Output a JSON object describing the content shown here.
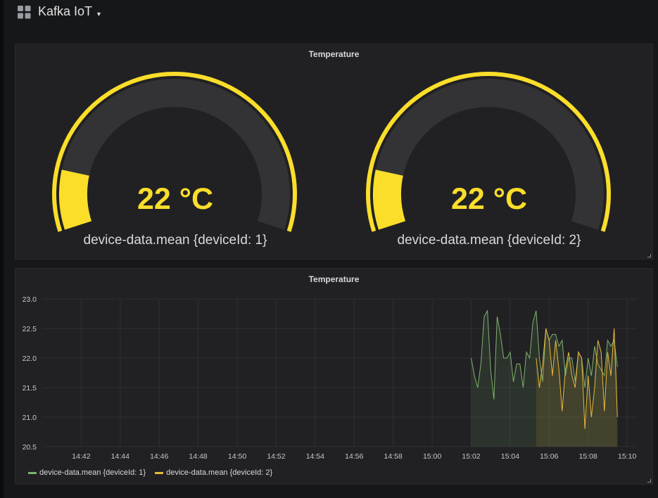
{
  "header": {
    "dashboard_title": "Kafka IoT",
    "dashboard_icon": "grid-icon",
    "caret_icon": "caret-down-icon"
  },
  "gauge_panel": {
    "title": "Temperature",
    "gauges": [
      {
        "value_text": "22 °C",
        "label": "device-data.mean {deviceId: 1}",
        "value": 22,
        "threshold_fraction": 0.14
      },
      {
        "value_text": "22 °C",
        "label": "device-data.mean {deviceId: 2}",
        "value": 22,
        "threshold_fraction": 0.14
      }
    ],
    "colors": {
      "accent": "#fade2a",
      "track": "#333335",
      "value": "#fade2a"
    }
  },
  "graph_panel": {
    "title": "Temperature",
    "legend": [
      {
        "label": "device-data.mean {deviceId: 1}",
        "color": "#7eb26d"
      },
      {
        "label": "device-data.mean {deviceId: 2}",
        "color": "#eab839"
      }
    ]
  },
  "chart_data": {
    "type": "line",
    "title": "Temperature",
    "xlabel": "",
    "ylabel": "",
    "x_ticks": [
      "14:42",
      "14:44",
      "14:46",
      "14:48",
      "14:50",
      "14:52",
      "14:54",
      "14:56",
      "14:58",
      "15:00",
      "15:02",
      "15:04",
      "15:06",
      "15:08",
      "15:10"
    ],
    "y_ticks": [
      "20.5",
      "21.0",
      "21.5",
      "22.0",
      "22.5",
      "23.0"
    ],
    "ylim": [
      20.5,
      23.0
    ],
    "xlim": [
      "14:40",
      "15:10"
    ],
    "grid": true,
    "legend_position": "bottom-left",
    "fill": true,
    "series": [
      {
        "name": "device-data.mean {deviceId: 1}",
        "color": "#7eb26d",
        "x": [
          "15:02:00",
          "15:02:10",
          "15:02:20",
          "15:02:30",
          "15:02:40",
          "15:02:50",
          "15:03:00",
          "15:03:10",
          "15:03:20",
          "15:03:30",
          "15:03:40",
          "15:03:50",
          "15:04:00",
          "15:04:10",
          "15:04:20",
          "15:04:30",
          "15:04:40",
          "15:04:50",
          "15:05:00",
          "15:05:10",
          "15:05:20",
          "15:05:30",
          "15:05:40",
          "15:05:50",
          "15:06:00",
          "15:06:10",
          "15:06:20",
          "15:06:30",
          "15:06:40",
          "15:06:50",
          "15:07:00",
          "15:07:10",
          "15:07:20",
          "15:07:30",
          "15:07:40",
          "15:07:50",
          "15:08:00",
          "15:08:10",
          "15:08:20",
          "15:08:30",
          "15:08:40",
          "15:08:50",
          "15:09:00",
          "15:09:10",
          "15:09:20",
          "15:09:30"
        ],
        "values": [
          22.0,
          21.7,
          21.5,
          21.9,
          22.7,
          22.8,
          21.8,
          21.3,
          22.7,
          22.4,
          22.0,
          22.0,
          22.1,
          21.6,
          21.9,
          21.9,
          21.5,
          22.1,
          22.0,
          22.6,
          22.8,
          22.0,
          21.6,
          22.5,
          22.3,
          22.4,
          22.4,
          22.2,
          22.3,
          21.7,
          22.0,
          22.0,
          21.6,
          22.1,
          22.0,
          21.5,
          22.0,
          21.7,
          22.2,
          21.9,
          21.8,
          21.7,
          22.3,
          22.2,
          22.3,
          21.85
        ]
      },
      {
        "name": "device-data.mean {deviceId: 2}",
        "color": "#eab839",
        "x": [
          "15:05:20",
          "15:05:30",
          "15:05:40",
          "15:05:50",
          "15:06:00",
          "15:06:10",
          "15:06:20",
          "15:06:30",
          "15:06:40",
          "15:06:50",
          "15:07:00",
          "15:07:10",
          "15:07:20",
          "15:07:30",
          "15:07:40",
          "15:07:50",
          "15:08:00",
          "15:08:10",
          "15:08:20",
          "15:08:30",
          "15:08:40",
          "15:08:50",
          "15:09:00",
          "15:09:10",
          "15:09:20",
          "15:09:30"
        ],
        "values": [
          22.0,
          21.5,
          21.9,
          22.5,
          22.3,
          21.7,
          22.3,
          21.8,
          21.1,
          21.8,
          22.1,
          21.7,
          21.5,
          22.1,
          22.0,
          20.8,
          21.7,
          21.0,
          21.5,
          22.3,
          22.1,
          21.1,
          22.1,
          21.7,
          22.5,
          21.0
        ]
      }
    ]
  }
}
